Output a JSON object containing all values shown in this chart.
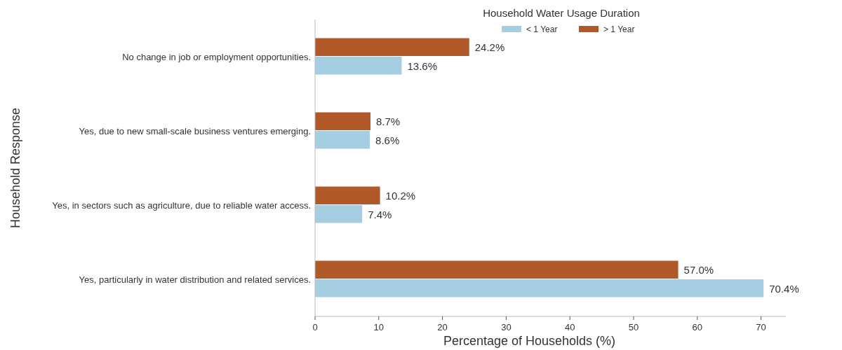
{
  "chart_data": {
    "type": "bar",
    "orientation": "horizontal",
    "xlabel": "Percentage of Households (%)",
    "ylabel": "Household Response",
    "legend_title": "Household Water Usage Duration",
    "legend": "top",
    "categories": [
      "No change in job or employment opportunities.",
      "Yes, due to new small-scale business ventures emerging.",
      "Yes, in sectors such as agriculture, due to reliable water access.",
      "Yes, particularly in water distribution and related services."
    ],
    "series": [
      {
        "name": "< 1 Year",
        "color": "#a6cee3",
        "values": [
          13.6,
          8.6,
          7.4,
          70.4
        ],
        "value_labels": [
          "13.6%",
          "8.6%",
          "7.4%",
          "70.4%"
        ]
      },
      {
        "name": "> 1 Year",
        "color": "#b15928",
        "values": [
          24.2,
          8.7,
          10.2,
          57.0
        ],
        "value_labels": [
          "24.2%",
          "8.7%",
          "10.2%",
          "57.0%"
        ]
      }
    ],
    "xlim": [
      0,
      73.9
    ],
    "xticks": [
      0,
      10,
      20,
      30,
      40,
      50,
      60,
      70
    ]
  }
}
